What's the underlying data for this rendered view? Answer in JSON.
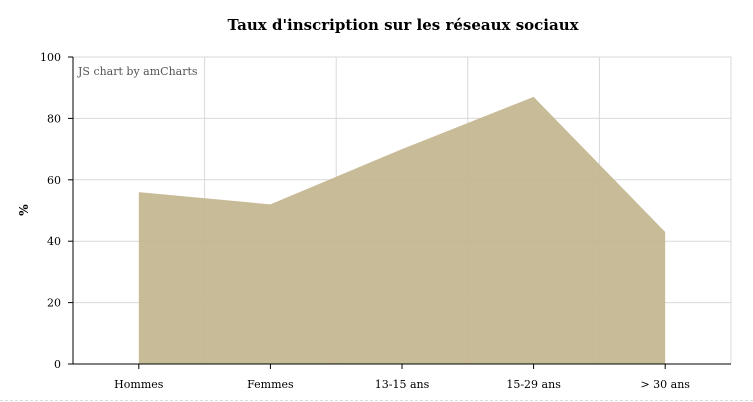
{
  "chart_data": {
    "type": "area",
    "title": "Taux d'inscription sur les réseaux sociaux",
    "xlabel": "",
    "ylabel": "%",
    "categories": [
      "Hommes",
      "Femmes",
      "13-15 ans",
      "15-29 ans",
      "> 30 ans"
    ],
    "series": [
      {
        "values": [
          56,
          52,
          70,
          87,
          43
        ]
      }
    ],
    "ylim": [
      0,
      100
    ],
    "yticks": [
      0,
      20,
      40,
      60,
      80,
      100
    ],
    "grid": true,
    "legend": "none",
    "fill_color": "#c5b791"
  },
  "watermark": "JS chart by amCharts"
}
